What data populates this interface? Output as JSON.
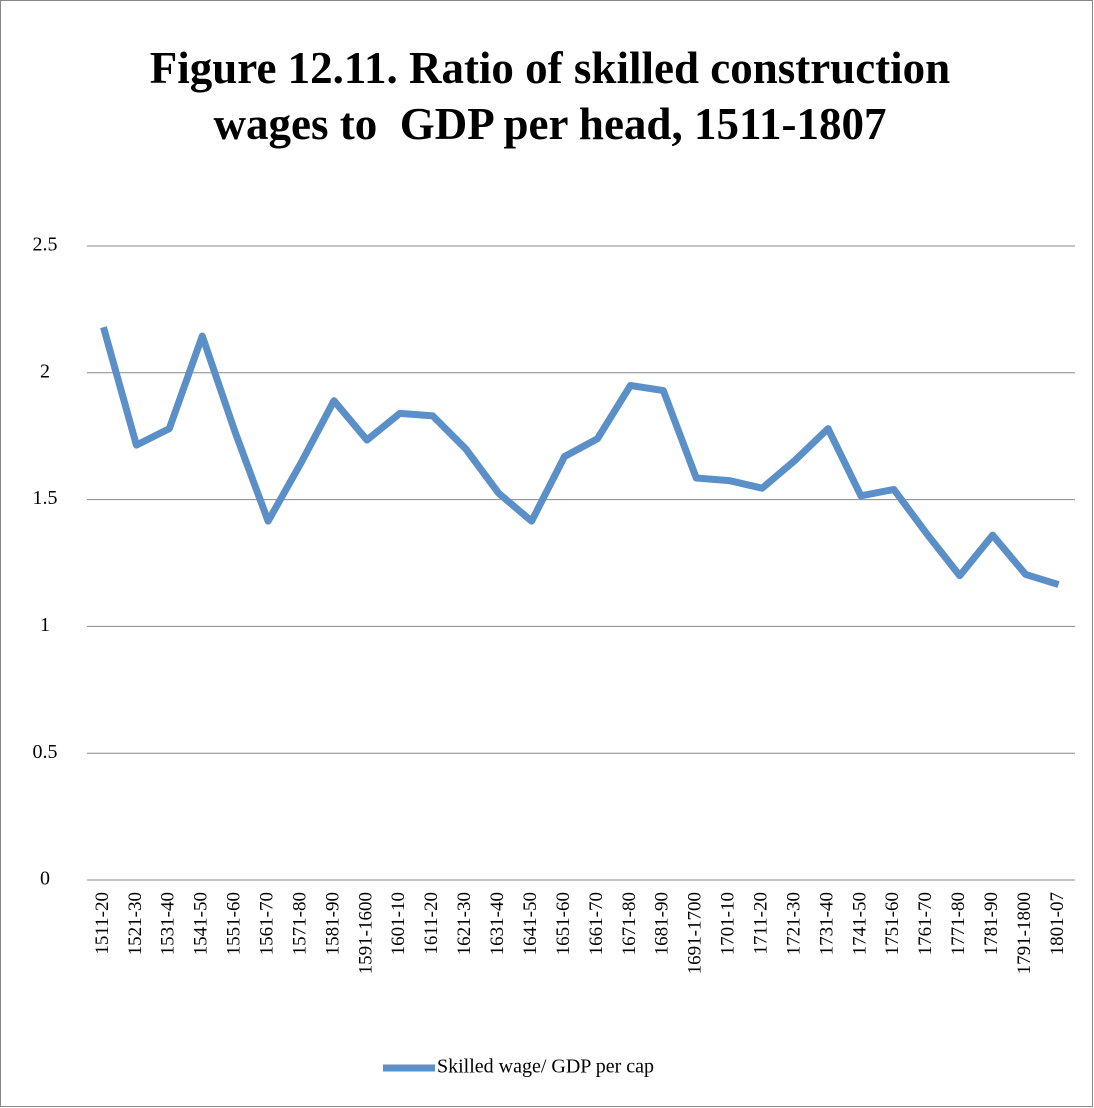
{
  "chart_data": {
    "type": "line",
    "title": "Figure 12.11. Ratio of skilled construction wages to  GDP per head, 1511-1807",
    "categories": [
      "1511-20",
      "1521-30",
      "1531-40",
      "1541-50",
      "1551-60",
      "1561-70",
      "1571-80",
      "1581-90",
      "1591-1600",
      "1601-10",
      "1611-20",
      "1621-30",
      "1631-40",
      "1641-50",
      "1651-60",
      "1661-70",
      "1671-80",
      "1681-90",
      "1691-1700",
      "1701-10",
      "1711-20",
      "1721-30",
      "1731-40",
      "1741-50",
      "1751-60",
      "1761-70",
      "1771-80",
      "1781-90",
      "1791-1800",
      "1801-07"
    ],
    "series": [
      {
        "name": "Skilled wage/ GDP per cap",
        "color": "#5b8fc7",
        "values": [
          2.18,
          1.715,
          1.78,
          2.145,
          1.765,
          1.415,
          1.645,
          1.89,
          1.735,
          1.84,
          1.83,
          1.7,
          1.525,
          1.415,
          1.67,
          1.74,
          1.95,
          1.93,
          1.585,
          1.575,
          1.545,
          1.655,
          1.78,
          1.515,
          1.54,
          1.365,
          1.2,
          1.36,
          1.205,
          1.165
        ]
      }
    ],
    "ylim": [
      0,
      2.5
    ],
    "yticks": [
      0,
      0.5,
      1,
      1.5,
      2,
      2.5
    ],
    "grid": true,
    "legend": "bottom"
  }
}
